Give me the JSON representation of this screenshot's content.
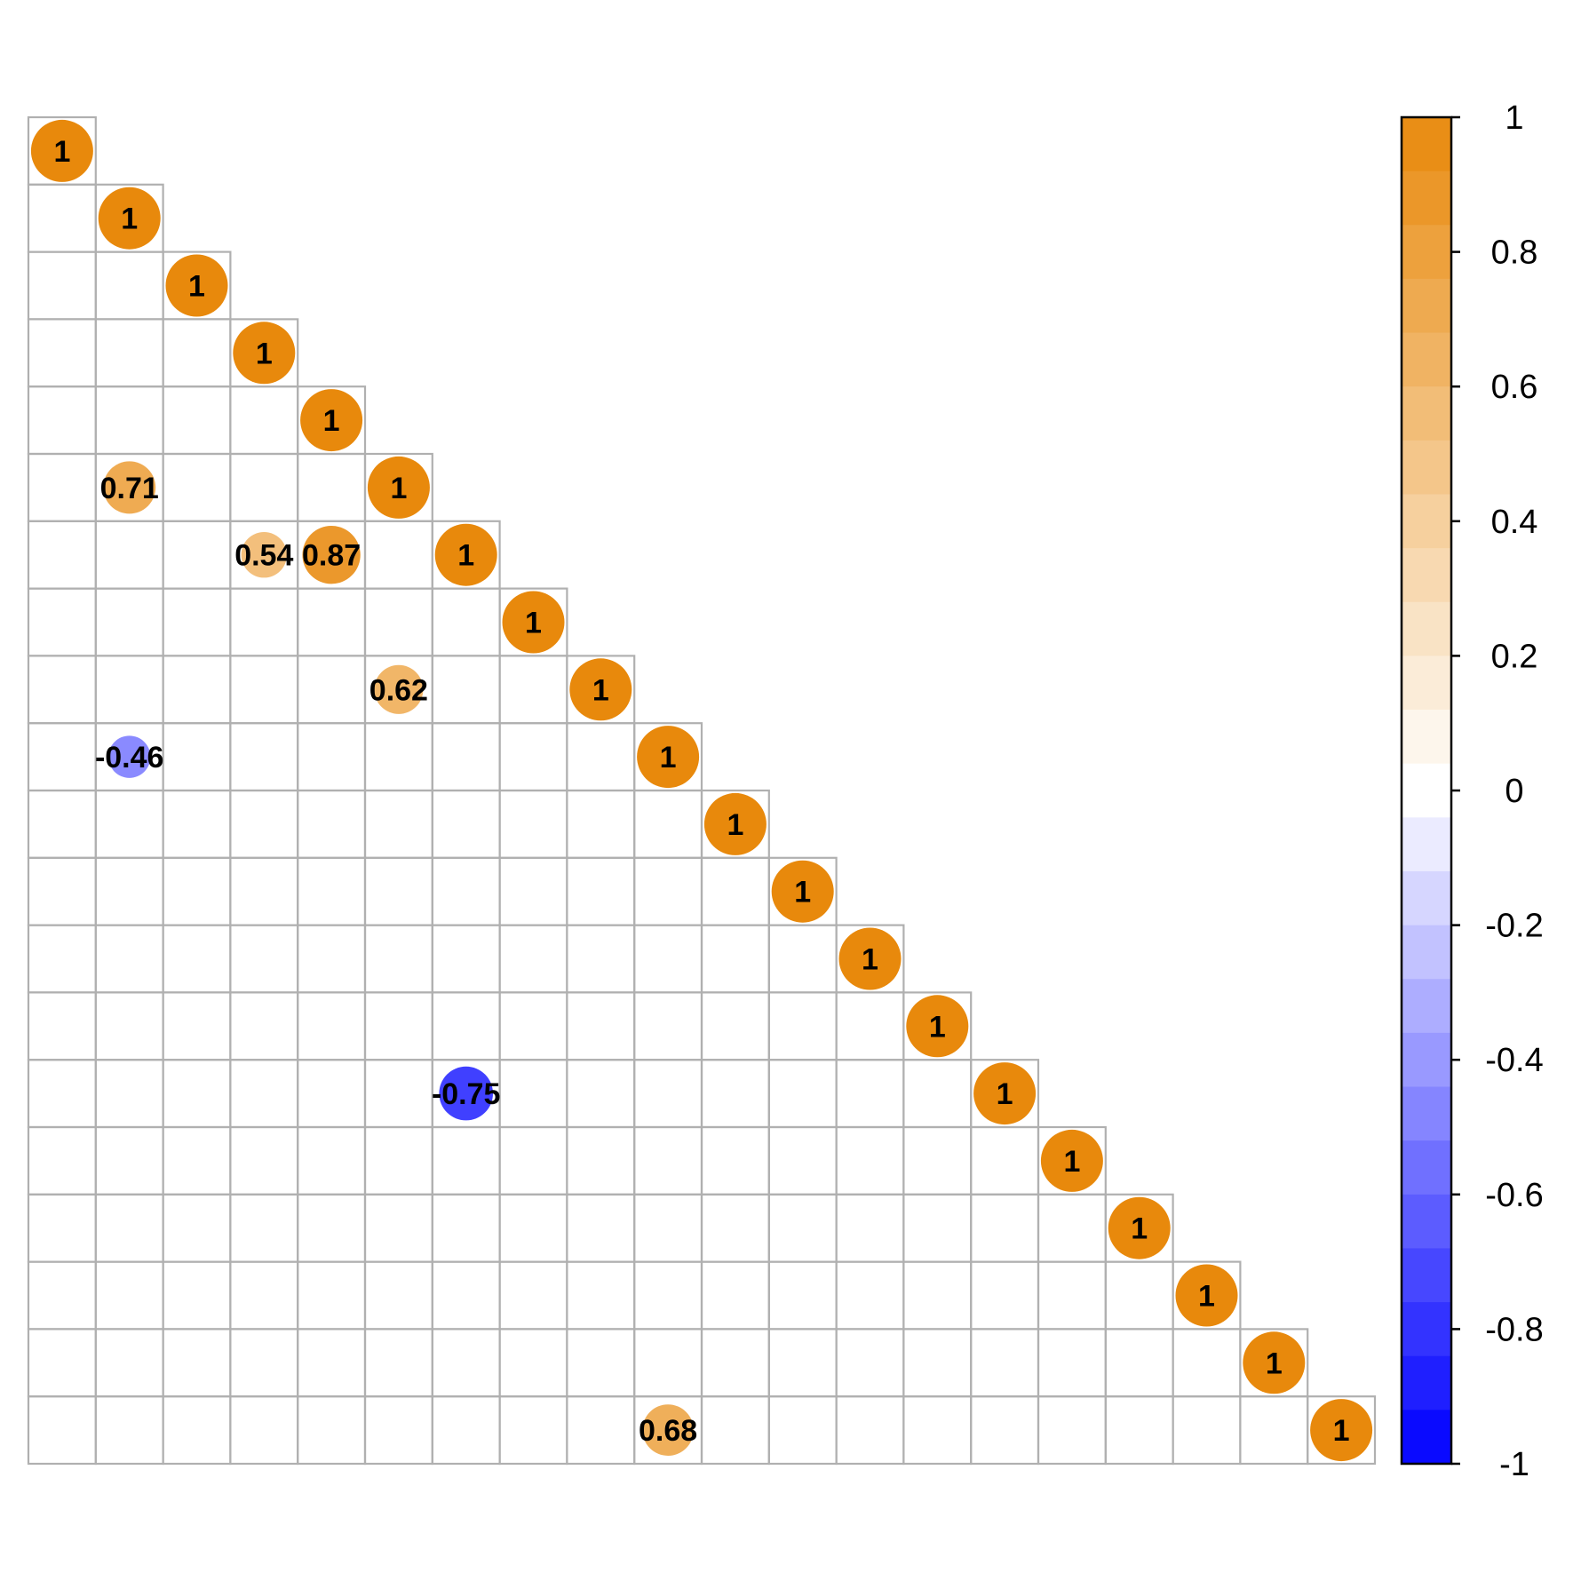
{
  "chart_data": {
    "type": "heatmap",
    "subtype": "correlation-matrix-lower-triangle",
    "size": 20,
    "title": "",
    "xlabel": "",
    "ylabel": "",
    "grid": true,
    "show_values": true,
    "diagonal": 1,
    "values": [
      {
        "row": 6,
        "col": 2,
        "value": 0.71,
        "label": "0.71"
      },
      {
        "row": 7,
        "col": 4,
        "value": 0.54,
        "label": "0.54"
      },
      {
        "row": 7,
        "col": 5,
        "value": 0.87,
        "label": "0.87"
      },
      {
        "row": 9,
        "col": 6,
        "value": 0.62,
        "label": "0.62"
      },
      {
        "row": 10,
        "col": 2,
        "value": -0.46,
        "label": "-0.46"
      },
      {
        "row": 15,
        "col": 7,
        "value": -0.75,
        "label": "-0.75"
      },
      {
        "row": 20,
        "col": 10,
        "value": 0.68,
        "label": "0.68"
      }
    ],
    "colorbar": {
      "range": [
        -1,
        1
      ],
      "ticks": [
        "1",
        "0.8",
        "0.6",
        "0.4",
        "0.2",
        "0",
        "-0.2",
        "-0.4",
        "-0.6",
        "-0.8",
        "-1"
      ],
      "tick_values": [
        1,
        0.8,
        0.6,
        0.4,
        0.2,
        0,
        -0.2,
        -0.4,
        -0.6,
        -0.8,
        -1
      ],
      "legend_placement": "right",
      "low_color": "#0000FF",
      "mid_color": "#FFFFFF",
      "high_color": "#E8890C"
    }
  }
}
